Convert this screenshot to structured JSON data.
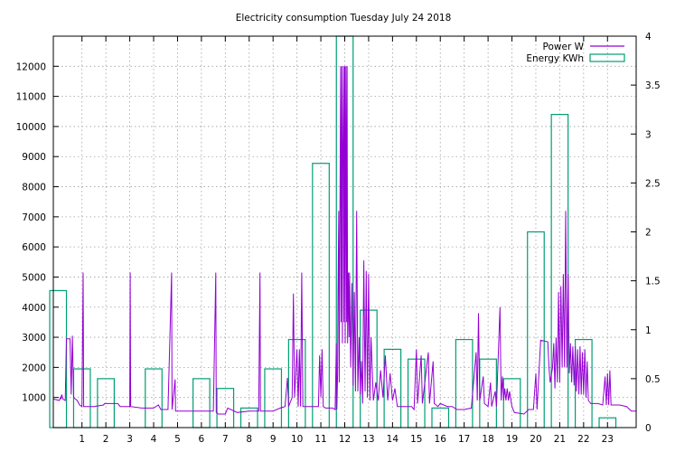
{
  "chart_data": {
    "type": "line",
    "title": "Electricity consumption Tuesday July 24 2018",
    "x_range": [
      -0.2,
      24.2
    ],
    "x_ticks": [
      1,
      2,
      3,
      4,
      5,
      6,
      7,
      8,
      9,
      10,
      11,
      12,
      13,
      14,
      15,
      16,
      17,
      18,
      19,
      20,
      21,
      22,
      23
    ],
    "y_left_range": [
      0,
      13000
    ],
    "y_left_ticks": [
      1000,
      2000,
      3000,
      4000,
      5000,
      6000,
      7000,
      8000,
      9000,
      10000,
      11000,
      12000
    ],
    "y_right_range": [
      0,
      4
    ],
    "y_right_ticks": [
      "0",
      "0.5",
      "1",
      "1.5",
      "2",
      "2.5",
      "3",
      "3.5",
      "4"
    ],
    "grid": true,
    "legend_position": "top-right",
    "colors": {
      "power": "#9400d3",
      "energy": "#009e73"
    },
    "series": [
      {
        "name": "Power W",
        "axis": "left",
        "type": "line",
        "points": [
          [
            -0.2,
            950
          ],
          [
            0.05,
            900
          ],
          [
            0.1,
            1000
          ],
          [
            0.12,
            950
          ],
          [
            0.15,
            1100
          ],
          [
            0.2,
            950
          ],
          [
            0.3,
            900
          ],
          [
            0.35,
            2950
          ],
          [
            0.5,
            2950
          ],
          [
            0.55,
            1100
          ],
          [
            0.6,
            3050
          ],
          [
            0.65,
            1000
          ],
          [
            0.8,
            900
          ],
          [
            0.9,
            750
          ],
          [
            1.0,
            700
          ],
          [
            1.05,
            5150
          ],
          [
            1.07,
            700
          ],
          [
            1.5,
            700
          ],
          [
            1.9,
            750
          ],
          [
            1.95,
            800
          ],
          [
            2.5,
            800
          ],
          [
            2.6,
            700
          ],
          [
            3.0,
            700
          ],
          [
            3.02,
            5150
          ],
          [
            3.04,
            700
          ],
          [
            3.5,
            650
          ],
          [
            4.0,
            650
          ],
          [
            4.2,
            750
          ],
          [
            4.3,
            600
          ],
          [
            4.6,
            600
          ],
          [
            4.75,
            5150
          ],
          [
            4.77,
            600
          ],
          [
            4.9,
            1600
          ],
          [
            4.92,
            550
          ],
          [
            5.5,
            550
          ],
          [
            6.0,
            550
          ],
          [
            6.5,
            550
          ],
          [
            6.6,
            5150
          ],
          [
            6.62,
            500
          ],
          [
            6.7,
            450
          ],
          [
            7.0,
            450
          ],
          [
            7.1,
            650
          ],
          [
            7.5,
            500
          ],
          [
            8.0,
            550
          ],
          [
            8.4,
            550
          ],
          [
            8.45,
            5150
          ],
          [
            8.47,
            550
          ],
          [
            9.0,
            550
          ],
          [
            9.3,
            650
          ],
          [
            9.5,
            700
          ],
          [
            9.6,
            1650
          ],
          [
            9.65,
            700
          ],
          [
            9.8,
            1000
          ],
          [
            9.85,
            4450
          ],
          [
            9.9,
            1000
          ],
          [
            10.0,
            2600
          ],
          [
            10.05,
            700
          ],
          [
            10.1,
            2600
          ],
          [
            10.15,
            700
          ],
          [
            10.2,
            5150
          ],
          [
            10.25,
            700
          ],
          [
            10.6,
            700
          ],
          [
            10.9,
            700
          ],
          [
            10.95,
            2400
          ],
          [
            11.0,
            1000
          ],
          [
            11.05,
            2600
          ],
          [
            11.1,
            700
          ],
          [
            11.2,
            650
          ],
          [
            11.5,
            650
          ],
          [
            11.6,
            600
          ],
          [
            11.65,
            2800
          ],
          [
            11.67,
            600
          ],
          [
            11.7,
            1800
          ],
          [
            11.72,
            4500
          ],
          [
            11.75,
            7200
          ],
          [
            11.77,
            1500
          ],
          [
            11.8,
            7200
          ],
          [
            11.83,
            12000
          ],
          [
            11.85,
            3500
          ],
          [
            11.88,
            12000
          ],
          [
            11.9,
            2800
          ],
          [
            11.92,
            9000
          ],
          [
            11.95,
            12000
          ],
          [
            11.97,
            3500
          ],
          [
            12.0,
            12000
          ],
          [
            12.02,
            2800
          ],
          [
            12.05,
            12000
          ],
          [
            12.08,
            3500
          ],
          [
            12.1,
            12000
          ],
          [
            12.12,
            2800
          ],
          [
            12.15,
            5150
          ],
          [
            12.18,
            3000
          ],
          [
            12.2,
            5150
          ],
          [
            12.25,
            2000
          ],
          [
            12.3,
            4800
          ],
          [
            12.35,
            1400
          ],
          [
            12.4,
            4500
          ],
          [
            12.45,
            1200
          ],
          [
            12.5,
            7200
          ],
          [
            12.55,
            1200
          ],
          [
            12.6,
            3000
          ],
          [
            12.65,
            1100
          ],
          [
            12.7,
            2200
          ],
          [
            12.75,
            800
          ],
          [
            12.8,
            5550
          ],
          [
            12.85,
            1200
          ],
          [
            12.9,
            5200
          ],
          [
            12.95,
            1000
          ],
          [
            13.0,
            5100
          ],
          [
            13.05,
            900
          ],
          [
            13.1,
            3000
          ],
          [
            13.2,
            900
          ],
          [
            13.3,
            1500
          ],
          [
            13.4,
            900
          ],
          [
            13.5,
            1900
          ],
          [
            13.6,
            1000
          ],
          [
            13.7,
            2400
          ],
          [
            13.8,
            900
          ],
          [
            13.9,
            1800
          ],
          [
            14.0,
            900
          ],
          [
            14.1,
            1300
          ],
          [
            14.2,
            700
          ],
          [
            14.5,
            700
          ],
          [
            14.8,
            700
          ],
          [
            14.9,
            600
          ],
          [
            15.0,
            2600
          ],
          [
            15.05,
            800
          ],
          [
            15.2,
            2400
          ],
          [
            15.25,
            800
          ],
          [
            15.5,
            2500
          ],
          [
            15.55,
            800
          ],
          [
            15.7,
            2200
          ],
          [
            15.75,
            800
          ],
          [
            15.9,
            700
          ],
          [
            16.0,
            800
          ],
          [
            16.3,
            700
          ],
          [
            16.5,
            700
          ],
          [
            16.7,
            600
          ],
          [
            17.0,
            600
          ],
          [
            17.3,
            650
          ],
          [
            17.5,
            2500
          ],
          [
            17.55,
            900
          ],
          [
            17.6,
            3800
          ],
          [
            17.65,
            900
          ],
          [
            17.8,
            1700
          ],
          [
            17.85,
            800
          ],
          [
            18.0,
            700
          ],
          [
            18.1,
            1500
          ],
          [
            18.15,
            700
          ],
          [
            18.3,
            1200
          ],
          [
            18.35,
            700
          ],
          [
            18.5,
            4000
          ],
          [
            18.55,
            900
          ],
          [
            18.6,
            1700
          ],
          [
            18.65,
            900
          ],
          [
            18.7,
            1300
          ],
          [
            18.75,
            900
          ],
          [
            18.8,
            1300
          ],
          [
            18.85,
            900
          ],
          [
            18.9,
            1200
          ],
          [
            19.0,
            700
          ],
          [
            19.1,
            500
          ],
          [
            19.5,
            450
          ],
          [
            19.7,
            600
          ],
          [
            19.9,
            600
          ],
          [
            20.0,
            1800
          ],
          [
            20.05,
            600
          ],
          [
            20.2,
            2900
          ],
          [
            20.5,
            2850
          ],
          [
            20.55,
            2000
          ],
          [
            20.6,
            1500
          ],
          [
            20.7,
            2000
          ],
          [
            20.75,
            2800
          ],
          [
            20.8,
            1300
          ],
          [
            20.85,
            3000
          ],
          [
            20.9,
            1500
          ],
          [
            20.95,
            4500
          ],
          [
            21.0,
            1500
          ],
          [
            21.05,
            4700
          ],
          [
            21.1,
            2000
          ],
          [
            21.15,
            5100
          ],
          [
            21.2,
            2000
          ],
          [
            21.25,
            7200
          ],
          [
            21.3,
            2000
          ],
          [
            21.35,
            5100
          ],
          [
            21.4,
            1800
          ],
          [
            21.45,
            2800
          ],
          [
            21.5,
            1500
          ],
          [
            21.55,
            2700
          ],
          [
            21.6,
            1400
          ],
          [
            21.65,
            2700
          ],
          [
            21.7,
            1200
          ],
          [
            21.75,
            2600
          ],
          [
            21.8,
            1100
          ],
          [
            21.85,
            2700
          ],
          [
            21.9,
            1100
          ],
          [
            21.95,
            2500
          ],
          [
            22.0,
            1100
          ],
          [
            22.05,
            2600
          ],
          [
            22.1,
            1000
          ],
          [
            22.15,
            2200
          ],
          [
            22.2,
            900
          ],
          [
            22.3,
            800
          ],
          [
            22.6,
            800
          ],
          [
            22.8,
            750
          ],
          [
            22.9,
            1700
          ],
          [
            22.95,
            750
          ],
          [
            23.0,
            1800
          ],
          [
            23.05,
            750
          ],
          [
            23.1,
            1900
          ],
          [
            23.15,
            750
          ],
          [
            23.5,
            750
          ],
          [
            23.8,
            700
          ],
          [
            24.0,
            550
          ],
          [
            24.2,
            550
          ]
        ]
      },
      {
        "name": "Energy KWh",
        "axis": "right",
        "type": "bar",
        "hours": [
          0,
          1,
          2,
          3,
          4,
          5,
          6,
          7,
          8,
          9,
          10,
          11,
          12,
          13,
          14,
          15,
          16,
          17,
          18,
          19,
          20,
          21,
          22,
          23
        ],
        "values": [
          1.4,
          0.6,
          0.5,
          0,
          0.6,
          0,
          0.5,
          0.4,
          0.2,
          0.6,
          0.9,
          2.7,
          4.0,
          1.2,
          0.8,
          0.7,
          0.2,
          0.9,
          0.7,
          0.5,
          2.0,
          3.2,
          0.9,
          0.1
        ]
      }
    ]
  }
}
